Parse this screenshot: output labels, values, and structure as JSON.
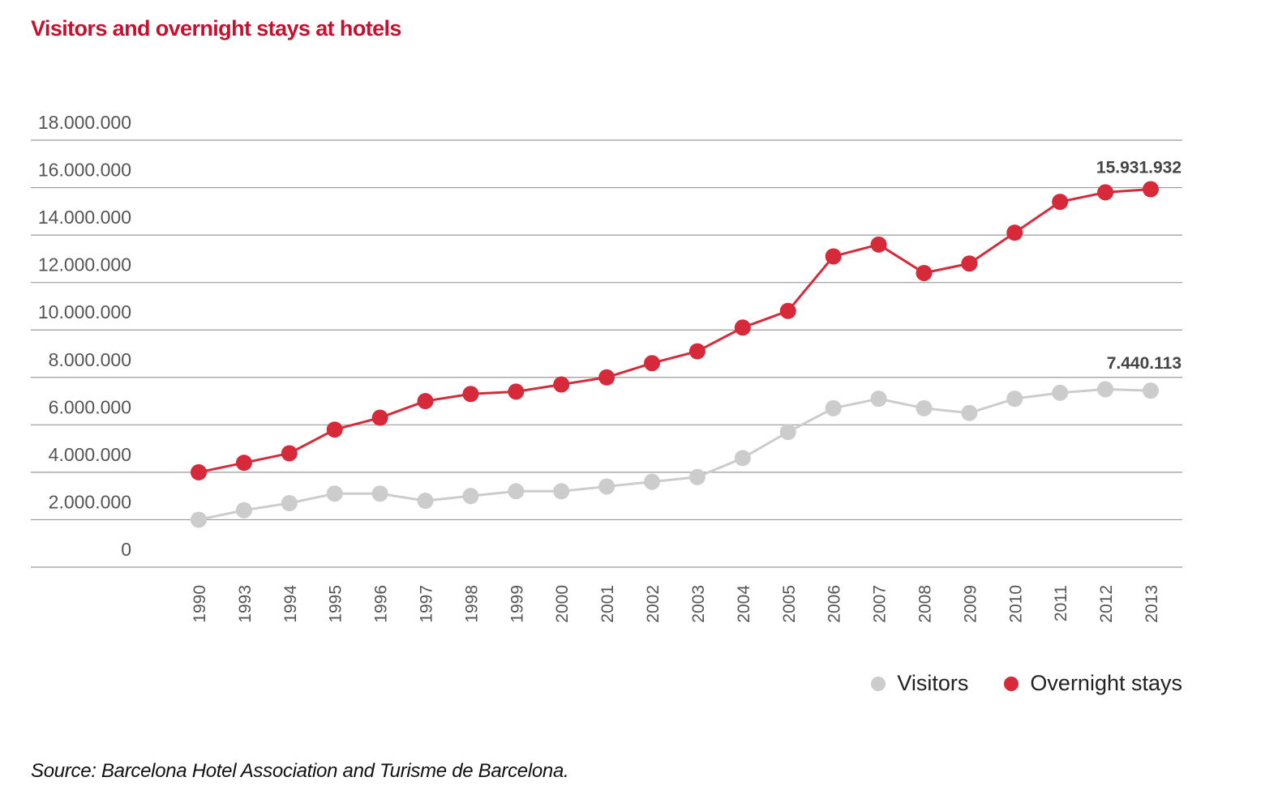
{
  "title": "Visitors and overnight stays at hotels",
  "source": "Source: Barcelona Hotel Association and Turisme de Barcelona.",
  "colors": {
    "title": "#c8102e",
    "visitors": "#cccccc",
    "visitors_line": "#cccccc",
    "overnight": "#d62a3a",
    "overnight_line": "#d62a3a",
    "grid": "#9a9a9a"
  },
  "chart_data": {
    "type": "line",
    "categories": [
      "1990",
      "1993",
      "1994",
      "1995",
      "1996",
      "1997",
      "1998",
      "1999",
      "2000",
      "2001",
      "2002",
      "2003",
      "2004",
      "2005",
      "2006",
      "2007",
      "2008",
      "2009",
      "2010",
      "2011",
      "2012",
      "2013"
    ],
    "y_ticks": [
      0,
      2000000,
      4000000,
      6000000,
      8000000,
      10000000,
      12000000,
      14000000,
      16000000,
      18000000
    ],
    "y_tick_labels": [
      "0",
      "2.000.000",
      "4.000.000",
      "6.000.000",
      "8.000.000",
      "10.000.000",
      "12.000.000",
      "14.000.000",
      "16.000.000",
      "18.000.000"
    ],
    "ylim": [
      0,
      18000000
    ],
    "grid": true,
    "legend_position": "bottom-right",
    "series": [
      {
        "name": "Visitors",
        "values": [
          2000000,
          2400000,
          2700000,
          3100000,
          3100000,
          2800000,
          3000000,
          3200000,
          3200000,
          3400000,
          3600000,
          3800000,
          4600000,
          5700000,
          6700000,
          7100000,
          6700000,
          6500000,
          7100000,
          7350000,
          7500000,
          7440113
        ],
        "end_label": "7.440.113"
      },
      {
        "name": "Overnight stays",
        "values": [
          4000000,
          4400000,
          4800000,
          5800000,
          6300000,
          7000000,
          7300000,
          7400000,
          7700000,
          8000000,
          8600000,
          9100000,
          10100000,
          10800000,
          13100000,
          13600000,
          12400000,
          12800000,
          14100000,
          15400000,
          15800000,
          15931932
        ],
        "end_label": "15.931.932"
      }
    ]
  }
}
